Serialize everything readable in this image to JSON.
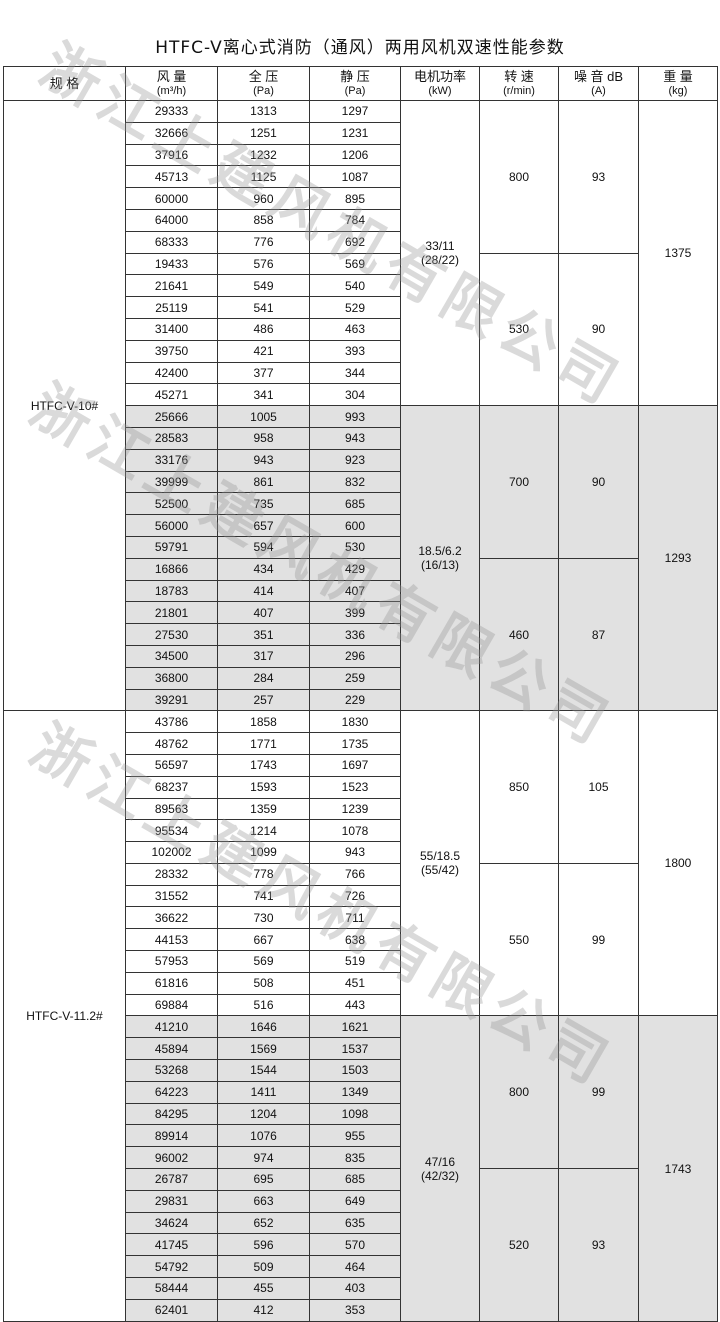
{
  "title": "HTFC-V离心式消防（通风）两用风机双速性能参数",
  "watermark": "浙江上建风机有限公司",
  "headers": [
    {
      "label": "规 格",
      "unit": ""
    },
    {
      "label": "风 量",
      "unit": "(m³/h)"
    },
    {
      "label": "全 压",
      "unit": "(Pa)"
    },
    {
      "label": "静 压",
      "unit": "(Pa)"
    },
    {
      "label": "电机功率",
      "unit": "(kW)"
    },
    {
      "label": "转 速",
      "unit": "(r/min)"
    },
    {
      "label": "噪 音 dB",
      "unit": "(A)"
    },
    {
      "label": "重 量",
      "unit": "(kg)"
    }
  ],
  "models": [
    {
      "name": "HTFC-V-10#",
      "groups": [
        {
          "power": "33/11",
          "power_sub": "(28/22)",
          "weight": "1375",
          "shaded": false,
          "speeds": [
            {
              "rpm": "800",
              "noise": "93",
              "rows": [
                [
                  "29333",
                  "1313",
                  "1297"
                ],
                [
                  "32666",
                  "1251",
                  "1231"
                ],
                [
                  "37916",
                  "1232",
                  "1206"
                ],
                [
                  "45713",
                  "1125",
                  "1087"
                ],
                [
                  "60000",
                  "960",
                  "895"
                ],
                [
                  "64000",
                  "858",
                  "784"
                ],
                [
                  "68333",
                  "776",
                  "692"
                ]
              ]
            },
            {
              "rpm": "530",
              "noise": "90",
              "rows": [
                [
                  "19433",
                  "576",
                  "569"
                ],
                [
                  "21641",
                  "549",
                  "540"
                ],
                [
                  "25119",
                  "541",
                  "529"
                ],
                [
                  "31400",
                  "486",
                  "463"
                ],
                [
                  "39750",
                  "421",
                  "393"
                ],
                [
                  "42400",
                  "377",
                  "344"
                ],
                [
                  "45271",
                  "341",
                  "304"
                ]
              ]
            }
          ]
        },
        {
          "power": "18.5/6.2",
          "power_sub": "(16/13)",
          "weight": "1293",
          "shaded": true,
          "speeds": [
            {
              "rpm": "700",
              "noise": "90",
              "rows": [
                [
                  "25666",
                  "1005",
                  "993"
                ],
                [
                  "28583",
                  "958",
                  "943"
                ],
                [
                  "33176",
                  "943",
                  "923"
                ],
                [
                  "39999",
                  "861",
                  "832"
                ],
                [
                  "52500",
                  "735",
                  "685"
                ],
                [
                  "56000",
                  "657",
                  "600"
                ],
                [
                  "59791",
                  "594",
                  "530"
                ]
              ]
            },
            {
              "rpm": "460",
              "noise": "87",
              "rows": [
                [
                  "16866",
                  "434",
                  "429"
                ],
                [
                  "18783",
                  "414",
                  "407"
                ],
                [
                  "21801",
                  "407",
                  "399"
                ],
                [
                  "27530",
                  "351",
                  "336"
                ],
                [
                  "34500",
                  "317",
                  "296"
                ],
                [
                  "36800",
                  "284",
                  "259"
                ],
                [
                  "39291",
                  "257",
                  "229"
                ]
              ]
            }
          ]
        }
      ]
    },
    {
      "name": "HTFC-V-11.2#",
      "groups": [
        {
          "power": "55/18.5",
          "power_sub": "(55/42)",
          "weight": "1800",
          "shaded": false,
          "speeds": [
            {
              "rpm": "850",
              "noise": "105",
              "rows": [
                [
                  "43786",
                  "1858",
                  "1830"
                ],
                [
                  "48762",
                  "1771",
                  "1735"
                ],
                [
                  "56597",
                  "1743",
                  "1697"
                ],
                [
                  "68237",
                  "1593",
                  "1523"
                ],
                [
                  "89563",
                  "1359",
                  "1239"
                ],
                [
                  "95534",
                  "1214",
                  "1078"
                ],
                [
                  "102002",
                  "1099",
                  "943"
                ]
              ]
            },
            {
              "rpm": "550",
              "noise": "99",
              "rows": [
                [
                  "28332",
                  "778",
                  "766"
                ],
                [
                  "31552",
                  "741",
                  "726"
                ],
                [
                  "36622",
                  "730",
                  "711"
                ],
                [
                  "44153",
                  "667",
                  "638"
                ],
                [
                  "57953",
                  "569",
                  "519"
                ],
                [
                  "61816",
                  "508",
                  "451"
                ],
                [
                  "69884",
                  "516",
                  "443"
                ]
              ]
            }
          ]
        },
        {
          "power": "47/16",
          "power_sub": "(42/32)",
          "weight": "1743",
          "shaded": true,
          "speeds": [
            {
              "rpm": "800",
              "noise": "99",
              "rows": [
                [
                  "41210",
                  "1646",
                  "1621"
                ],
                [
                  "45894",
                  "1569",
                  "1537"
                ],
                [
                  "53268",
                  "1544",
                  "1503"
                ],
                [
                  "64223",
                  "1411",
                  "1349"
                ],
                [
                  "84295",
                  "1204",
                  "1098"
                ],
                [
                  "89914",
                  "1076",
                  "955"
                ],
                [
                  "96002",
                  "974",
                  "835"
                ]
              ]
            },
            {
              "rpm": "520",
              "noise": "93",
              "rows": [
                [
                  "26787",
                  "695",
                  "685"
                ],
                [
                  "29831",
                  "663",
                  "649"
                ],
                [
                  "34624",
                  "652",
                  "635"
                ],
                [
                  "41745",
                  "596",
                  "570"
                ],
                [
                  "54792",
                  "509",
                  "464"
                ],
                [
                  "58444",
                  "455",
                  "403"
                ],
                [
                  "62401",
                  "412",
                  "353"
                ]
              ]
            }
          ]
        }
      ]
    }
  ]
}
